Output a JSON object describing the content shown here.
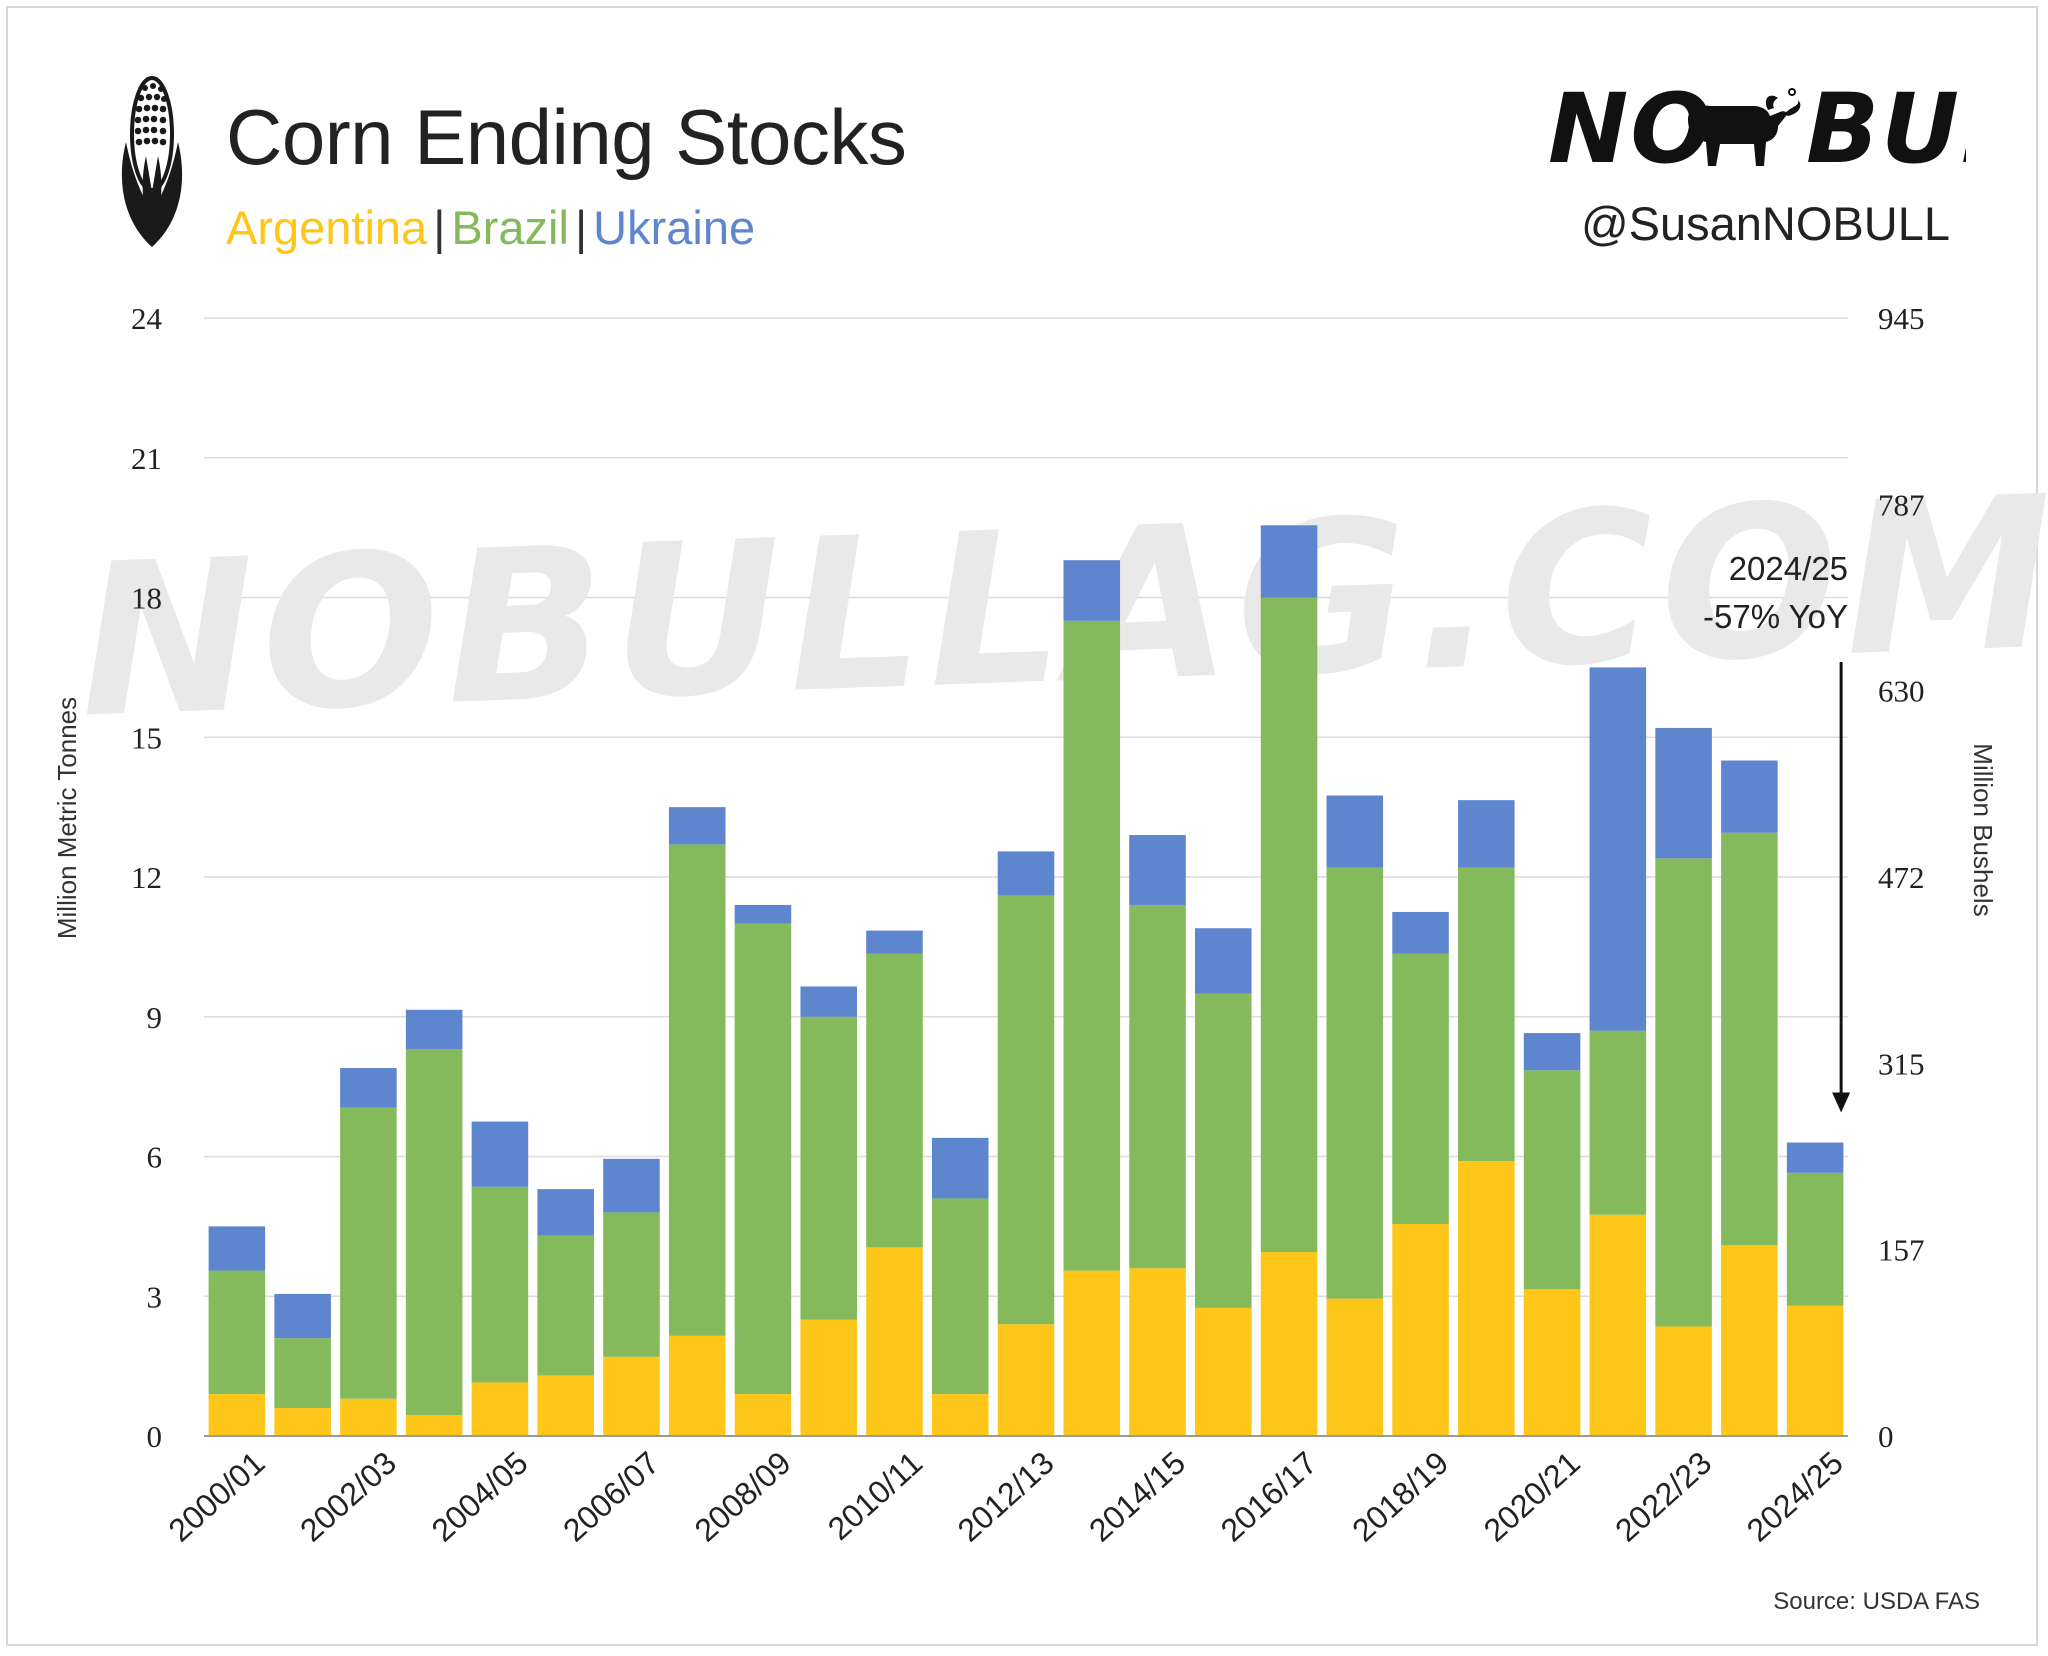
{
  "header": {
    "title": "Corn Ending Stocks",
    "subtitle": {
      "argentina": "Argentina",
      "brazil": "Brazil",
      "ukraine": "Ukraine",
      "separator": "|"
    },
    "logo_text_left": "NO",
    "logo_text_right": "BULL",
    "handle": "@SusanNOBULL",
    "icon": "corn-icon"
  },
  "watermark": "NOBULLAG.COM",
  "source": "Source: USDA FAS",
  "colors": {
    "argentina": "#FFC61A",
    "brazil": "#84BA5B",
    "ukraine": "#5E86CF",
    "grid": "#DCDCDC",
    "text": "#222222"
  },
  "chart_data": {
    "type": "bar",
    "stacked": true,
    "title": "Corn Ending Stocks",
    "ylabel": "Million Metric Tonnes",
    "y2label": "Million Bushels",
    "ylim": [
      0,
      24
    ],
    "yticks": [
      0,
      3,
      6,
      9,
      12,
      15,
      18,
      21,
      24
    ],
    "y2ticks": [
      "0",
      "157",
      "315",
      "472",
      "630",
      "787",
      "945"
    ],
    "categories": [
      "2000/01",
      "2001/02",
      "2002/03",
      "2003/04",
      "2004/05",
      "2005/06",
      "2006/07",
      "2007/08",
      "2008/09",
      "2009/10",
      "2010/11",
      "2011/12",
      "2012/13",
      "2013/14",
      "2014/15",
      "2015/16",
      "2016/17",
      "2017/18",
      "2018/19",
      "2019/20",
      "2020/21",
      "2021/22",
      "2022/23",
      "2023/24",
      "2024/25"
    ],
    "xtick_labels": [
      "2000/01",
      "2002/03",
      "2004/05",
      "2006/07",
      "2008/09",
      "2010/11",
      "2012/13",
      "2014/15",
      "2016/17",
      "2018/19",
      "2020/21",
      "2022/23",
      "2024/25"
    ],
    "series": [
      {
        "name": "Argentina",
        "values": [
          0.9,
          0.6,
          0.8,
          0.45,
          1.15,
          1.3,
          1.7,
          2.15,
          0.9,
          2.5,
          4.05,
          0.9,
          2.4,
          3.55,
          3.6,
          2.75,
          3.95,
          2.95,
          4.55,
          5.9,
          3.15,
          4.75,
          2.35,
          4.1,
          2.8
        ]
      },
      {
        "name": "Brazil",
        "values": [
          2.65,
          1.5,
          6.25,
          7.85,
          4.2,
          3.0,
          3.1,
          10.55,
          10.1,
          6.5,
          6.3,
          4.2,
          9.2,
          13.95,
          7.8,
          6.75,
          14.05,
          9.25,
          5.8,
          6.3,
          4.7,
          3.95,
          10.05,
          8.85,
          2.85
        ]
      },
      {
        "name": "Ukraine",
        "values": [
          0.95,
          0.95,
          0.85,
          0.85,
          1.4,
          1.0,
          1.15,
          0.8,
          0.4,
          0.65,
          0.5,
          1.3,
          0.95,
          1.3,
          1.5,
          1.4,
          1.55,
          1.55,
          0.9,
          1.45,
          0.8,
          7.8,
          2.8,
          1.55,
          0.65
        ]
      }
    ],
    "annotation": {
      "line1": "2024/25",
      "line2": "-57% YoY",
      "target_category": "2024/25"
    }
  }
}
